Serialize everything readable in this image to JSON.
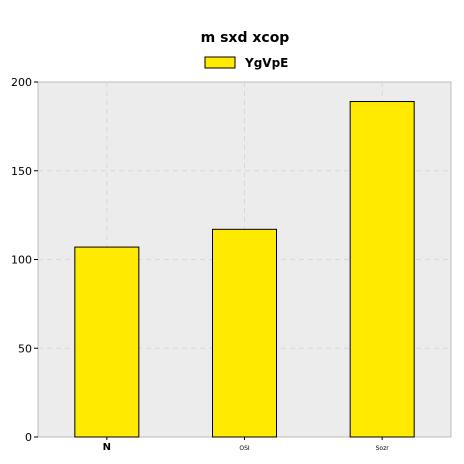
{
  "chart_data": {
    "type": "bar",
    "title": "m sxd xcop",
    "xlabel": "",
    "ylabel": "",
    "categories": [
      "N",
      "OSI",
      "Sozr"
    ],
    "series": [
      {
        "name": "YgVpE",
        "values": [
          107,
          117,
          189
        ]
      }
    ],
    "ylim": [
      0,
      200
    ],
    "yticks": [
      0,
      50,
      100,
      150,
      200
    ],
    "grid": true,
    "legend_position": "top-center",
    "colors": {
      "bar_fill": "#ffea00",
      "bar_stroke": "#000000",
      "plot_background": "#ececec"
    }
  }
}
